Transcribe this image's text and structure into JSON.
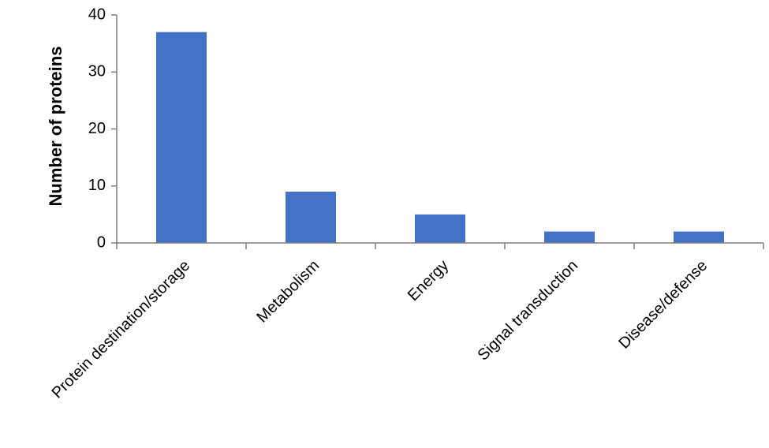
{
  "chart_data": {
    "type": "bar",
    "y_label": "Number of proteins",
    "categories": [
      "Protein destination/storage",
      "Metabolism",
      "Energy",
      "Signal transduction",
      "Disease/defense"
    ],
    "values": [
      37,
      9,
      5,
      2,
      2
    ],
    "color": "#4472c4",
    "ylim": [
      0,
      40
    ],
    "yticks": [
      0,
      10,
      20,
      30,
      40
    ],
    "grid": false
  }
}
